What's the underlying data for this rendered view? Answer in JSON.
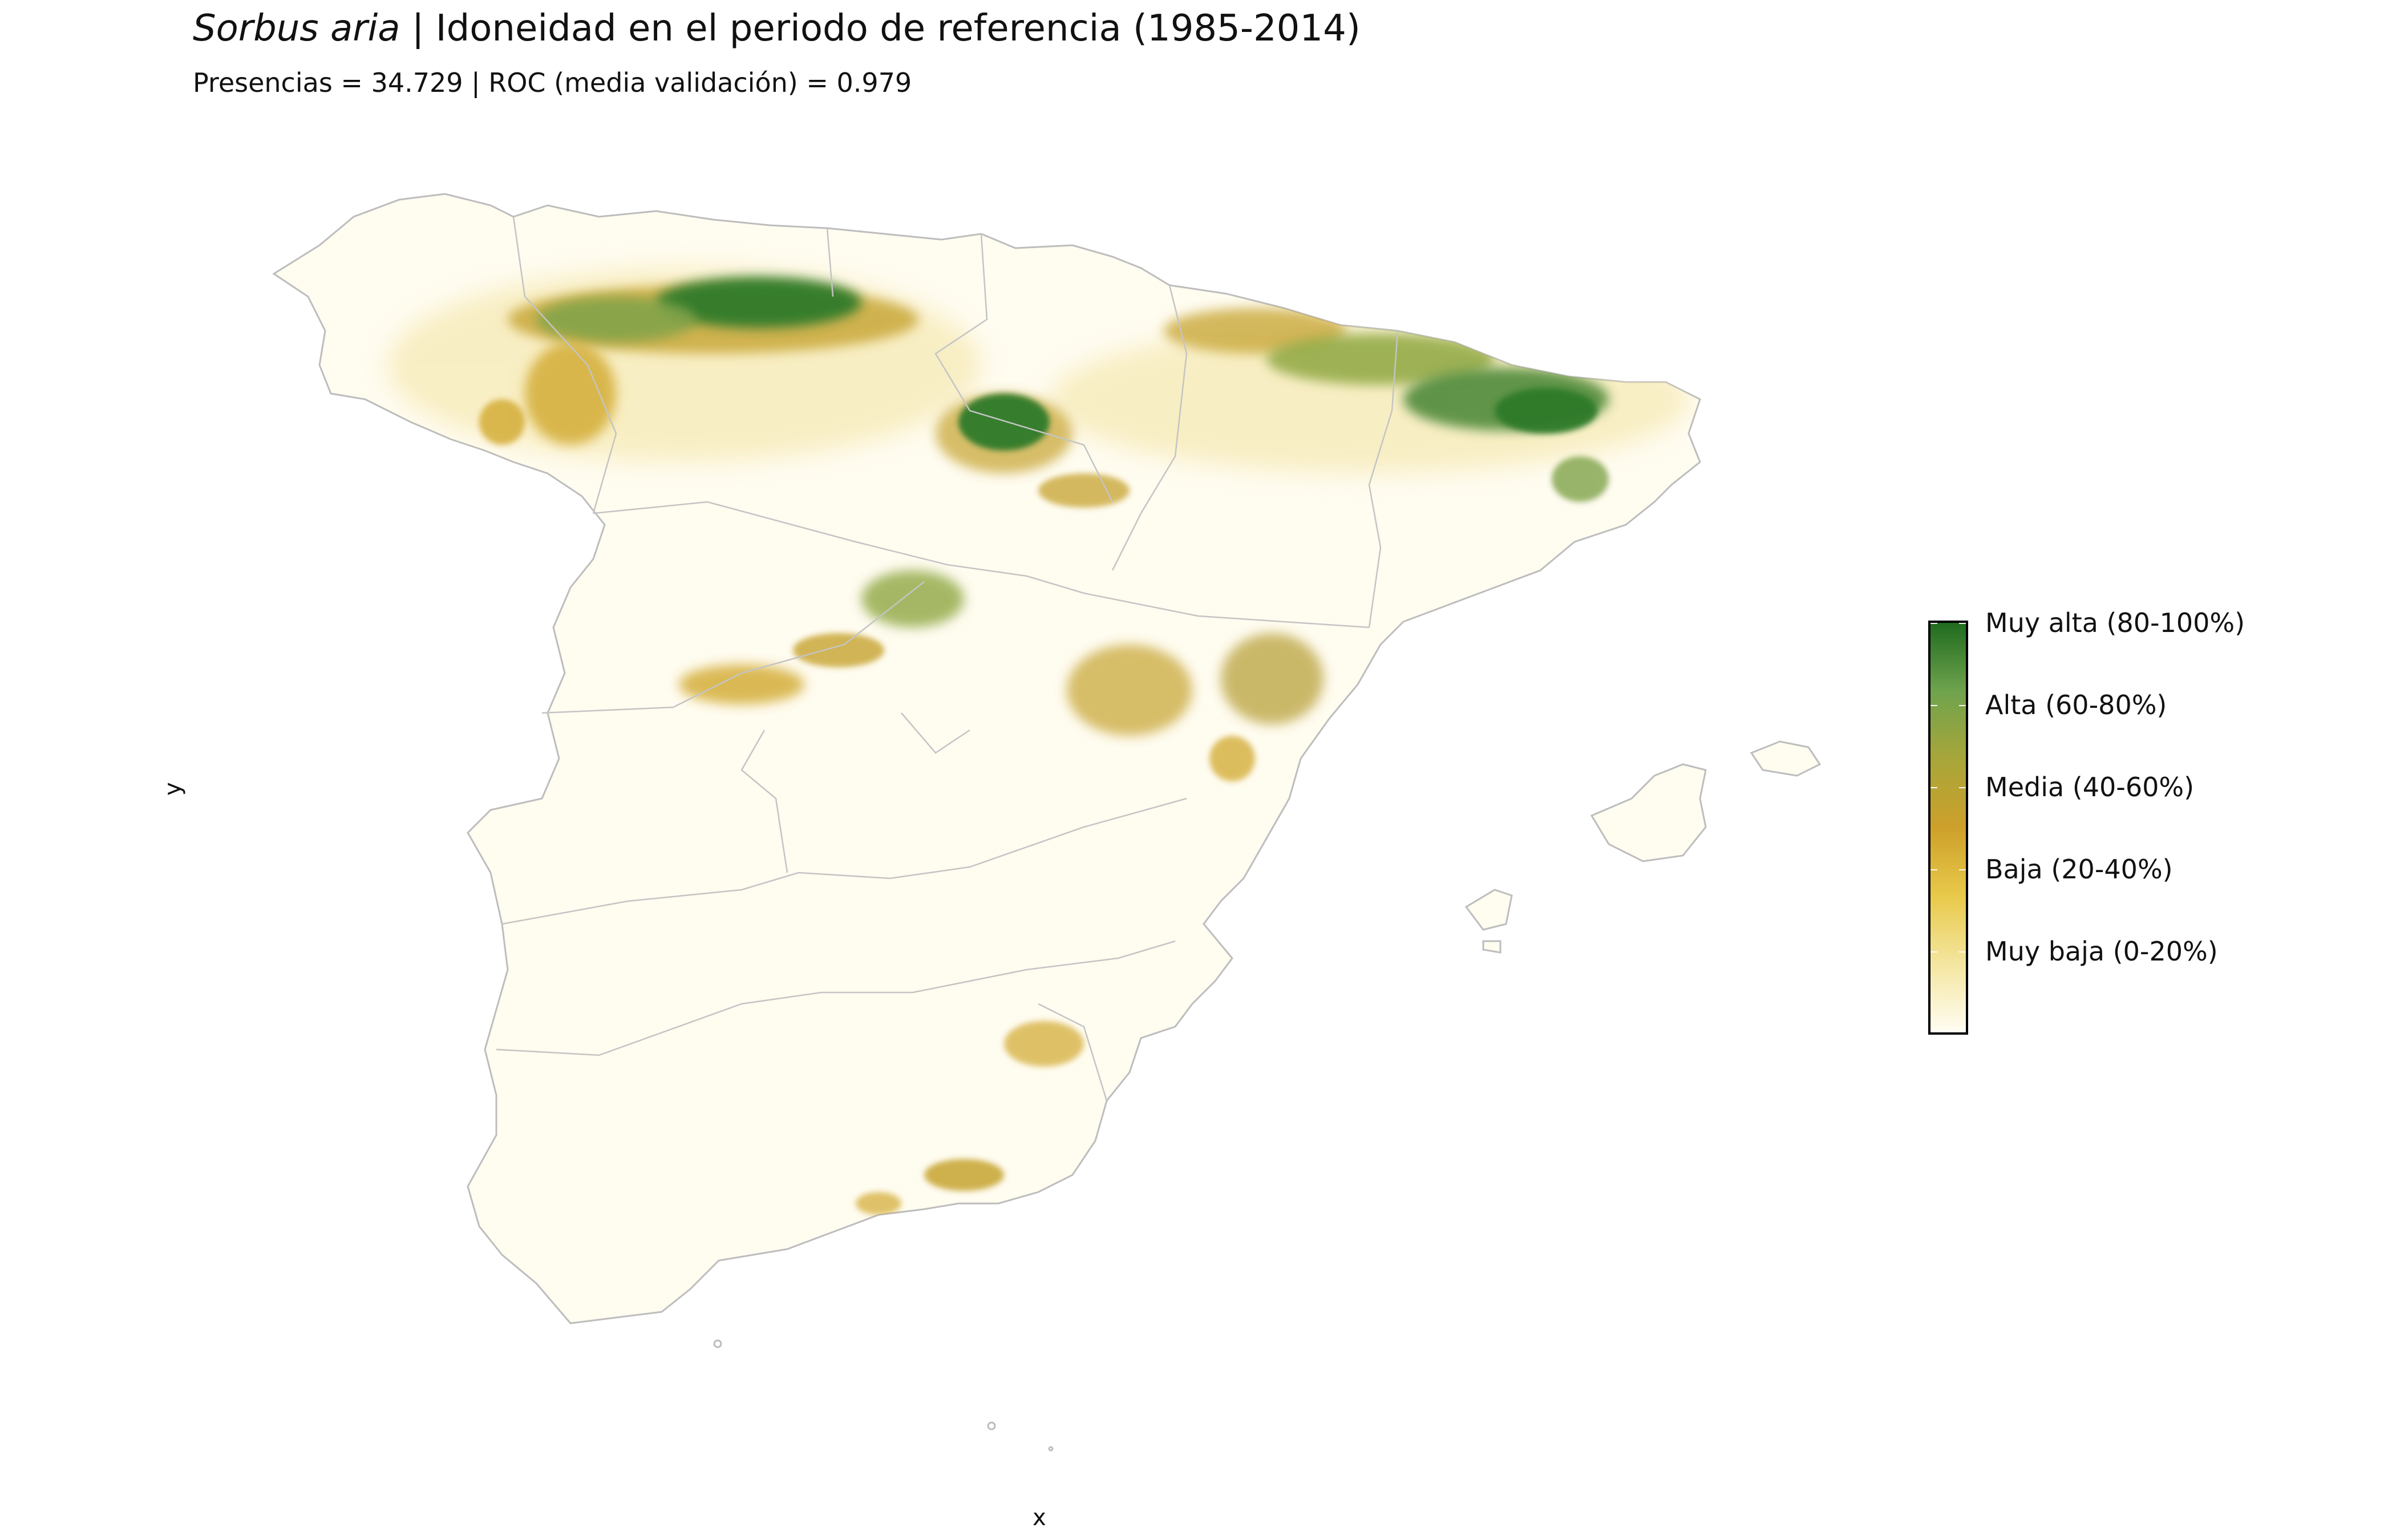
{
  "title": {
    "species": "Sorbus aria",
    "separator": " | ",
    "text": "Idoneidad en el periodo de referencia (1985-2014)"
  },
  "subtitle": "Presencias = 34.729  |  ROC (media validación) = 0.979",
  "axes": {
    "x_label": "x",
    "y_label": "y"
  },
  "map": {
    "region": "Península Ibérica (España) e Islas Baleares",
    "border_color": "#bdbdbd",
    "background_fill": "#fffcf0",
    "suitability_hotspots": [
      "Cordillera Cantábrica",
      "Pirineos",
      "Sistema Ibérico norte",
      "Sistema Central",
      "Serranía de Cuenca",
      "Sierra Nevada"
    ]
  },
  "legend": {
    "gradient": [
      "#fffdf3",
      "#f4e6a0",
      "#e8c94a",
      "#cda02a",
      "#a8a63a",
      "#6fa34d",
      "#1f6b1f"
    ],
    "labels": [
      "Muy alta (80-100%)",
      "Alta (60-80%)",
      "Media (40-60%)",
      "Baja (20-40%)",
      "Muy baja (0-20%)"
    ]
  }
}
